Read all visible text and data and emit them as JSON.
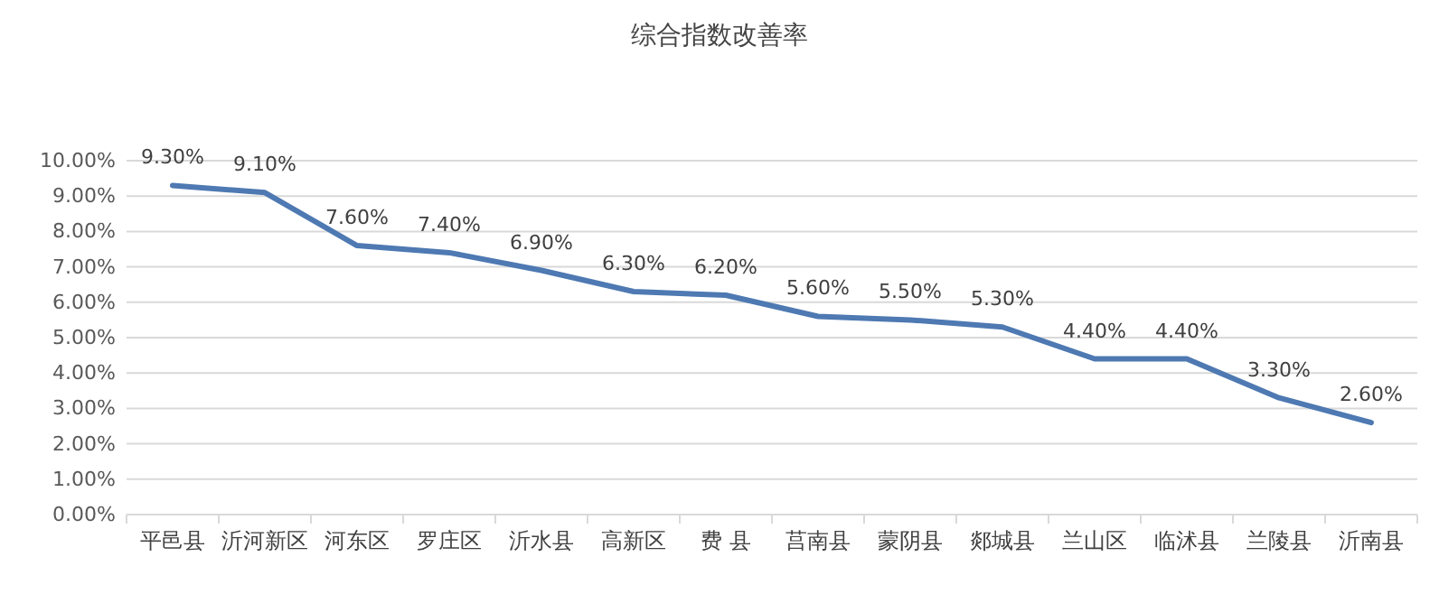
{
  "chart_data": {
    "type": "line",
    "title": "综合指数改善率",
    "categories": [
      "平邑县",
      "沂河新区",
      "河东区",
      "罗庄区",
      "沂水县",
      "高新区",
      "费 县",
      "莒南县",
      "蒙阴县",
      "郯城县",
      "兰山区",
      "临沭县",
      "兰陵县",
      "沂南县"
    ],
    "series": [
      {
        "color": "#4e79b2",
        "values": [
          9.3,
          9.1,
          7.6,
          7.4,
          6.9,
          6.3,
          6.2,
          5.6,
          5.5,
          5.3,
          4.4,
          4.4,
          3.3,
          2.6
        ],
        "value_labels": [
          "9.30%",
          "9.10%",
          "7.60%",
          "7.40%",
          "6.90%",
          "6.30%",
          "6.20%",
          "5.60%",
          "5.50%",
          "5.30%",
          "4.40%",
          "4.40%",
          "3.30%",
          "2.60%"
        ]
      }
    ],
    "ylim": [
      0,
      10
    ],
    "yticks": [
      {
        "value": 0,
        "label": "0.00%"
      },
      {
        "value": 1,
        "label": "1.00%"
      },
      {
        "value": 2,
        "label": "2.00%"
      },
      {
        "value": 3,
        "label": "3.00%"
      },
      {
        "value": 4,
        "label": "4.00%"
      },
      {
        "value": 5,
        "label": "5.00%"
      },
      {
        "value": 6,
        "label": "6.00%"
      },
      {
        "value": 7,
        "label": "7.00%"
      },
      {
        "value": 8,
        "label": "8.00%"
      },
      {
        "value": 9,
        "label": "9.00%"
      },
      {
        "value": 10,
        "label": "10.00%"
      }
    ],
    "grid": "y",
    "marker": "none",
    "line_style": "solid"
  }
}
